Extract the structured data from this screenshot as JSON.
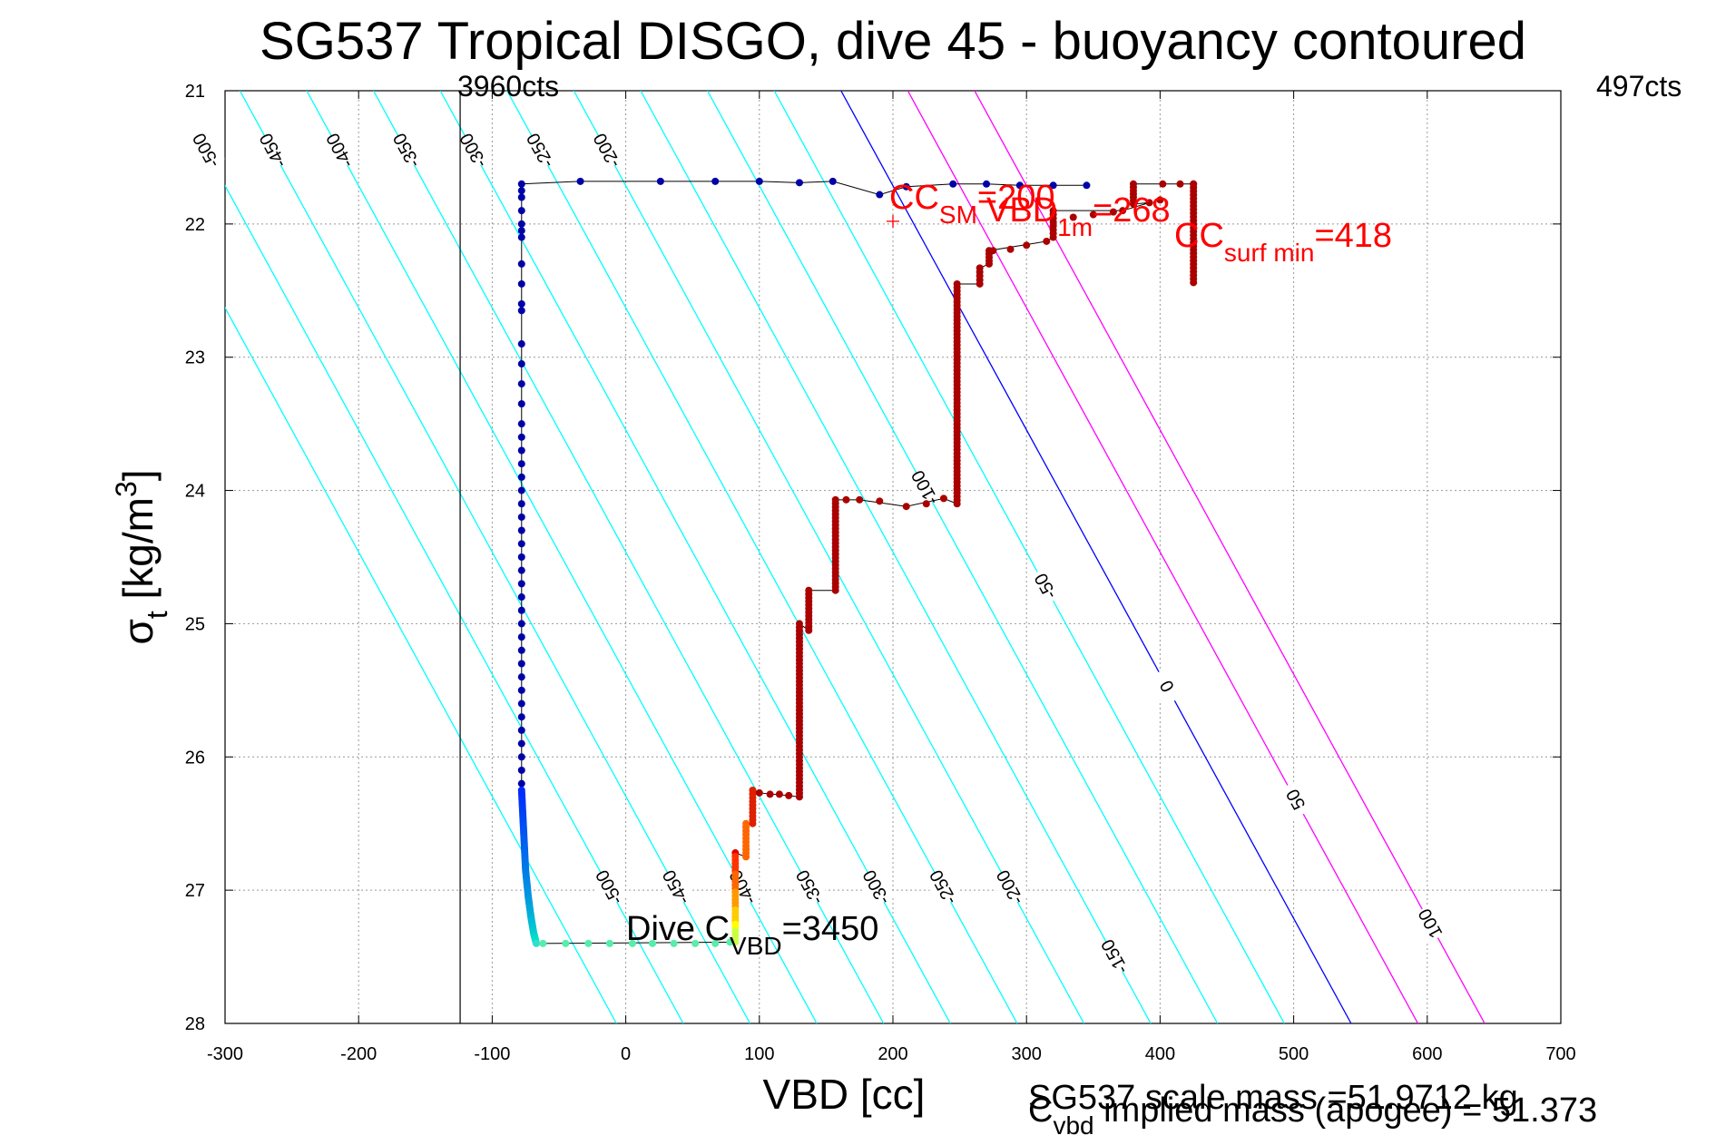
{
  "chart_data": {
    "type": "scatter",
    "title": "SG537 Tropical DISGO, dive 45 - buoyancy contoured",
    "xlabel": "VBD [cc]",
    "ylabel_main": "σ",
    "ylabel_sub": "t",
    "ylabel_units": " [kg/m",
    "ylabel_sup": "3",
    "ylabel_close": "]",
    "xlim": [
      -300,
      700
    ],
    "ylim": [
      21,
      28
    ],
    "y_reversed": true,
    "grid": true,
    "xticks": [
      -300,
      -200,
      -100,
      0,
      100,
      200,
      300,
      400,
      500,
      600,
      700
    ],
    "yticks": [
      21,
      22,
      23,
      24,
      25,
      26,
      27,
      28
    ],
    "xtick_labels": [
      "-300",
      "-200",
      "-100",
      "0",
      "100",
      "200",
      "300",
      "400",
      "500",
      "600",
      "700"
    ],
    "ytick_labels": [
      "21",
      "22",
      "23",
      "24",
      "25",
      "26",
      "27",
      "28"
    ],
    "vertical_marker": {
      "x": -124
    },
    "left_marker_label": "3960cts",
    "right_marker_label": "497cts",
    "contours": {
      "slope_sigma_per_cc": 0.01833,
      "spacing_cc": 50,
      "x_at_sigma28_for_zero": 543,
      "levels": [
        -550,
        -500,
        -450,
        -400,
        -350,
        -300,
        -250,
        -200,
        -150,
        -100,
        -50,
        0,
        50,
        100
      ],
      "colors": {
        "negative": "#00ffff",
        "zero": "#0000ff",
        "positive": "#ff00ff"
      },
      "labels_upper": [
        "-500",
        "-450",
        "-400",
        "-350",
        "-300",
        "-250",
        "-200"
      ],
      "labels_upper_levels": [
        -500,
        -450,
        -400,
        -350,
        -300,
        -250,
        -200
      ],
      "labels_lower": [
        "-500",
        "-450",
        "-400",
        "-350",
        "-300",
        "-250",
        "-200",
        "-150"
      ],
      "labels_lower_levels": [
        -500,
        -450,
        -400,
        -350,
        -300,
        -250,
        -200,
        -150
      ],
      "labels_right": [
        "-100",
        "-50",
        "0",
        "50",
        "100"
      ],
      "labels_right_levels": [
        -100,
        -50,
        0,
        50,
        100
      ]
    },
    "series_dive": {
      "color_top": "#0000a8",
      "points": [
        [
          -78,
          21.7
        ],
        [
          -34,
          21.68
        ],
        [
          26,
          21.68
        ],
        [
          67,
          21.68
        ],
        [
          100,
          21.68
        ],
        [
          130,
          21.69
        ],
        [
          155,
          21.68
        ],
        [
          190,
          21.78
        ],
        [
          210,
          21.72
        ],
        [
          245,
          21.7
        ],
        [
          270,
          21.7
        ],
        [
          295,
          21.71
        ],
        [
          320,
          21.71
        ],
        [
          345,
          21.71
        ],
        [
          -78,
          21.75
        ],
        [
          -78,
          21.8
        ],
        [
          -78,
          21.9
        ],
        [
          -78,
          22.0
        ],
        [
          -78,
          22.05
        ],
        [
          -78,
          22.1
        ],
        [
          -78,
          22.3
        ],
        [
          -78,
          22.45
        ],
        [
          -78,
          22.6
        ],
        [
          -78,
          22.65
        ],
        [
          -78,
          22.9
        ],
        [
          -78,
          23.05
        ],
        [
          -78,
          23.2
        ],
        [
          -78,
          23.35
        ],
        [
          -78,
          23.5
        ],
        [
          -78,
          23.6
        ],
        [
          -78,
          23.7
        ],
        [
          -78,
          23.8
        ],
        [
          -78,
          23.9
        ],
        [
          -78,
          24.0
        ],
        [
          -78,
          24.1
        ],
        [
          -78,
          24.2
        ],
        [
          -78,
          24.3
        ],
        [
          -78,
          24.4
        ],
        [
          -78,
          24.5
        ],
        [
          -78,
          24.6
        ],
        [
          -78,
          24.7
        ],
        [
          -78,
          24.8
        ],
        [
          -78,
          24.9
        ],
        [
          -78,
          25.0
        ],
        [
          -78,
          25.1
        ],
        [
          -78,
          25.2
        ],
        [
          -78,
          25.3
        ],
        [
          -78,
          25.4
        ],
        [
          -78,
          25.5
        ],
        [
          -78,
          25.6
        ],
        [
          -78,
          25.7
        ],
        [
          -78,
          25.8
        ],
        [
          -78,
          25.9
        ],
        [
          -78,
          26.0
        ],
        [
          -78,
          26.1
        ],
        [
          -78,
          26.2
        ]
      ],
      "bottom_curve": [
        [
          -78,
          26.25
        ],
        [
          -77,
          26.45
        ],
        [
          -76,
          26.65
        ],
        [
          -75,
          26.85
        ],
        [
          -73,
          27.05
        ],
        [
          -71,
          27.2
        ],
        [
          -69,
          27.32
        ],
        [
          -67,
          27.4
        ]
      ],
      "bottom_points": [
        [
          -67,
          27.4
        ],
        [
          -62,
          27.4
        ],
        [
          -45,
          27.4
        ],
        [
          -28,
          27.4
        ],
        [
          -12,
          27.4
        ],
        [
          5,
          27.4
        ],
        [
          20,
          27.4
        ],
        [
          36,
          27.4
        ],
        [
          52,
          27.4
        ],
        [
          67,
          27.4
        ],
        [
          78,
          27.39
        ]
      ]
    },
    "series_climb": {
      "color": "#aa0000",
      "steps": [
        {
          "x": 82,
          "y0": 26.72,
          "y1": 27.39
        },
        {
          "x": 90,
          "y0": 26.5,
          "y1": 26.75
        },
        {
          "x": 95,
          "y0": 26.25,
          "y1": 26.5
        },
        {
          "x": 130,
          "y0": 25.0,
          "y1": 26.3
        },
        {
          "x": 137,
          "y0": 24.75,
          "y1": 25.05
        },
        {
          "x": 157,
          "y0": 24.07,
          "y1": 24.75
        },
        {
          "x": 248,
          "y0": 22.45,
          "y1": 24.1
        },
        {
          "x": 265,
          "y0": 22.33,
          "y1": 22.45
        },
        {
          "x": 272,
          "y0": 22.2,
          "y1": 22.3
        },
        {
          "x": 320,
          "y0": 21.9,
          "y1": 22.1
        },
        {
          "x": 380,
          "y0": 21.7,
          "y1": 21.85
        },
        {
          "x": 425,
          "y0": 21.7,
          "y1": 22.44
        }
      ],
      "scatter": [
        [
          100,
          26.27
        ],
        [
          108,
          26.28
        ],
        [
          115,
          26.28
        ],
        [
          122,
          26.29
        ],
        [
          165,
          24.07
        ],
        [
          175,
          24.07
        ],
        [
          190,
          24.08
        ],
        [
          210,
          24.12
        ],
        [
          225,
          24.1
        ],
        [
          238,
          24.06
        ],
        [
          275,
          22.2
        ],
        [
          288,
          22.19
        ],
        [
          300,
          22.16
        ],
        [
          315,
          22.13
        ],
        [
          335,
          21.95
        ],
        [
          350,
          21.93
        ],
        [
          365,
          21.91
        ],
        [
          372,
          21.9
        ],
        [
          392,
          21.84
        ],
        [
          400,
          21.82
        ],
        [
          402,
          21.7
        ],
        [
          415,
          21.7
        ],
        [
          425,
          21.7
        ]
      ],
      "warm_colors": [
        "#ffff00",
        "#ffcc00",
        "#ff9900",
        "#ff6600",
        "#ff3300",
        "#dd0000"
      ]
    },
    "annotations": {
      "dive_cvbd_main": "Dive C",
      "dive_cvbd_sub": "VBD",
      "dive_cvbd_value": "=3450",
      "cc_sm_main": "CC",
      "cc_sm_sub": "SM",
      "cc_sm_value": "=200",
      "vbd_1m_main": "VBD",
      "vbd_1m_sub": "1m",
      "vbd_1m_value": "=268",
      "cc_surf_main": "CC",
      "cc_surf_sub": "surf min",
      "cc_surf_value": "=418",
      "red_plus": {
        "x": 200,
        "y": 21.98
      }
    },
    "footer": {
      "scale_mass": "SG537 scale mass =51.9712 kg",
      "implied_main": "C",
      "implied_sub": "vbd",
      "implied_rest": " implied mass (apogee) = 51.373"
    }
  }
}
